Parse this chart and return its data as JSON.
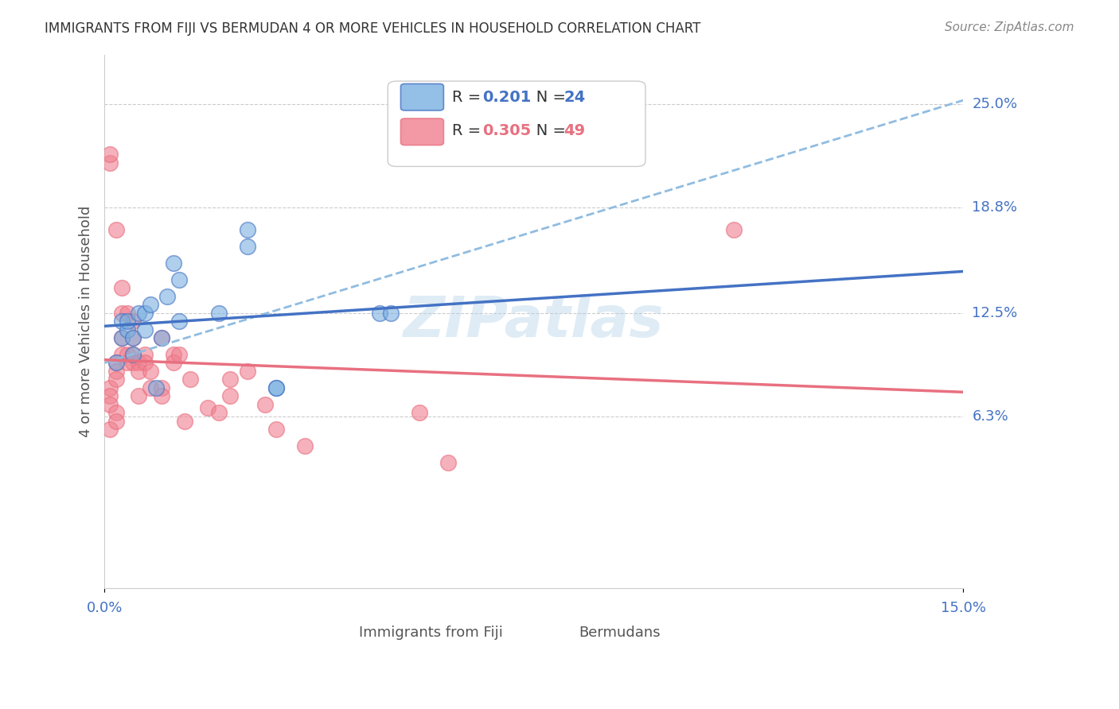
{
  "title": "IMMIGRANTS FROM FIJI VS BERMUDAN 4 OR MORE VEHICLES IN HOUSEHOLD CORRELATION CHART",
  "source": "Source: ZipAtlas.com",
  "watermark": "ZIPatlas",
  "xlabel_bottom_left": "0.0%",
  "xlabel_bottom_right": "15.0%",
  "ylabel": "4 or more Vehicles in Household",
  "ytick_labels": [
    "25.0%",
    "18.8%",
    "12.5%",
    "6.3%"
  ],
  "ytick_values": [
    0.25,
    0.188,
    0.125,
    0.063
  ],
  "xlim": [
    0.0,
    0.15
  ],
  "ylim": [
    -0.04,
    0.28
  ],
  "legend_fiji_r": "0.201",
  "legend_fiji_n": "24",
  "legend_bermuda_r": "0.305",
  "legend_bermuda_n": "49",
  "fiji_color": "#7ab0e0",
  "bermuda_color": "#f08090",
  "fiji_line_color": "#4472c4",
  "bermuda_line_color": "#e87080",
  "dashed_line_color": "#90bce0",
  "ytick_label_color": "#4472c4",
  "title_color": "#333333",
  "fiji_scatter_x": [
    0.002,
    0.003,
    0.003,
    0.004,
    0.004,
    0.005,
    0.005,
    0.006,
    0.007,
    0.007,
    0.008,
    0.009,
    0.01,
    0.011,
    0.012,
    0.013,
    0.013,
    0.02,
    0.025,
    0.025,
    0.03,
    0.03,
    0.048,
    0.05
  ],
  "fiji_scatter_y": [
    0.095,
    0.11,
    0.12,
    0.115,
    0.12,
    0.1,
    0.11,
    0.125,
    0.115,
    0.125,
    0.13,
    0.08,
    0.11,
    0.135,
    0.155,
    0.145,
    0.12,
    0.125,
    0.175,
    0.165,
    0.08,
    0.08,
    0.125,
    0.125
  ],
  "bermuda_scatter_x": [
    0.001,
    0.001,
    0.001,
    0.001,
    0.001,
    0.001,
    0.002,
    0.002,
    0.002,
    0.002,
    0.002,
    0.002,
    0.003,
    0.003,
    0.003,
    0.003,
    0.004,
    0.004,
    0.004,
    0.005,
    0.005,
    0.005,
    0.005,
    0.006,
    0.006,
    0.006,
    0.007,
    0.007,
    0.008,
    0.008,
    0.01,
    0.01,
    0.01,
    0.012,
    0.012,
    0.013,
    0.014,
    0.015,
    0.018,
    0.02,
    0.022,
    0.022,
    0.025,
    0.028,
    0.03,
    0.035,
    0.055,
    0.06,
    0.11
  ],
  "bermuda_scatter_y": [
    0.215,
    0.22,
    0.08,
    0.075,
    0.07,
    0.055,
    0.175,
    0.095,
    0.09,
    0.085,
    0.065,
    0.06,
    0.14,
    0.125,
    0.11,
    0.1,
    0.125,
    0.1,
    0.095,
    0.12,
    0.11,
    0.1,
    0.095,
    0.095,
    0.09,
    0.075,
    0.1,
    0.095,
    0.09,
    0.08,
    0.11,
    0.08,
    0.075,
    0.1,
    0.095,
    0.1,
    0.06,
    0.085,
    0.068,
    0.065,
    0.085,
    0.075,
    0.09,
    0.07,
    0.055,
    0.045,
    0.065,
    0.035,
    0.175
  ]
}
